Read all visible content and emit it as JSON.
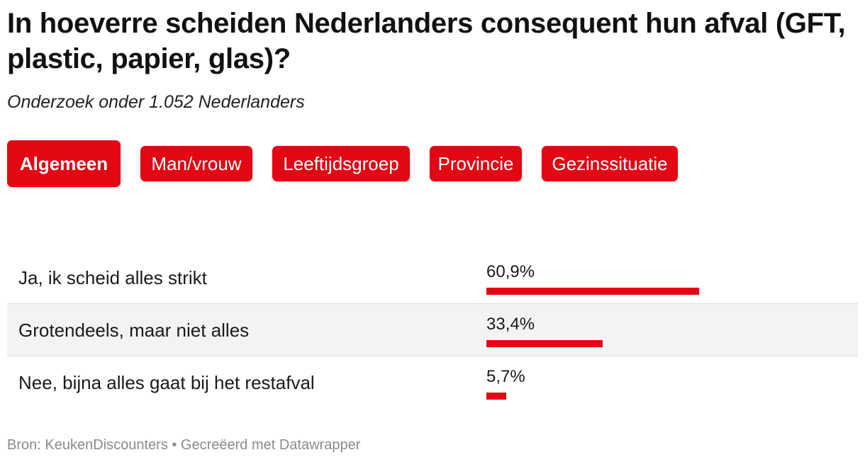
{
  "title": "In hoeverre scheiden Nederlanders consequent hun afval (GFT, plastic, papier, glas)?",
  "subtitle": "Onderzoek onder 1.052 Nederlanders",
  "tabs": [
    {
      "label": "Algemeen",
      "active": true
    },
    {
      "label": "Man/vrouw",
      "active": false
    },
    {
      "label": "Leeftijdsgroep",
      "active": false
    },
    {
      "label": "Provincie",
      "active": false
    },
    {
      "label": "Gezinssituatie",
      "active": false
    }
  ],
  "accent_color": "#e30613",
  "chart_data": {
    "type": "bar",
    "orientation": "horizontal",
    "categories": [
      "Ja, ik scheid alles strikt",
      "Grotendeels, maar niet alles",
      "Nee, bijna alles gaat bij het restafval"
    ],
    "values": [
      60.9,
      33.4,
      5.7
    ],
    "value_labels": [
      "60,9%",
      "33,4%",
      "5,7%"
    ],
    "unit": "%",
    "xlim": [
      0,
      100
    ]
  },
  "footer": "Bron: KeukenDiscounters • Gecreëerd met Datawrapper"
}
